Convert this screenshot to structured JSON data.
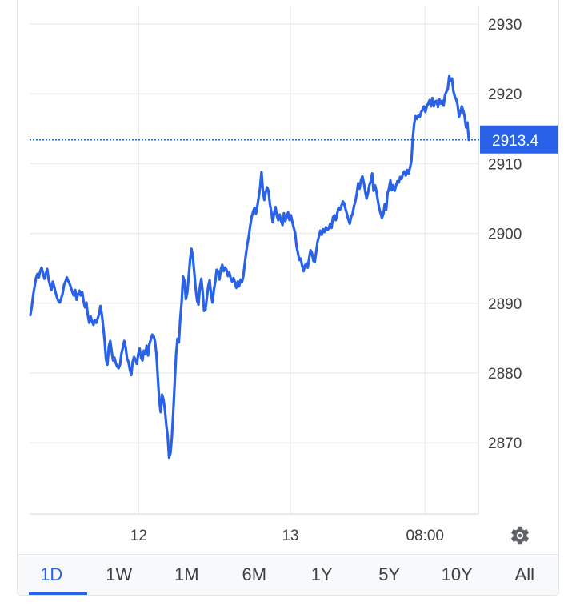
{
  "chart_data": {
    "type": "line",
    "title": "",
    "xlabel": "",
    "ylabel": "",
    "x_tick_labels": [
      "12",
      "13",
      "08:00"
    ],
    "y_ticks": [
      2870,
      2880,
      2890,
      2900,
      2910,
      2920,
      2930
    ],
    "y_tick_labels": [
      "2870",
      "2880",
      "2890",
      "2900",
      "2910",
      "2920",
      "2930"
    ],
    "ylim": [
      2860,
      2933
    ],
    "current_value": 2913.4,
    "current_label": "2913.4",
    "series": [
      {
        "values": [
          2888.3,
          2889.5,
          2891.2,
          2892.4,
          2893.6,
          2894.2,
          2893.7,
          2894.6,
          2895.1,
          2894.3,
          2893.5,
          2894.2,
          2894.9,
          2893.4,
          2892.6,
          2891.9,
          2893.1,
          2892.4,
          2891.5,
          2890.8,
          2890.3,
          2890.1,
          2890.7,
          2891.4,
          2892.6,
          2893.1,
          2893.7,
          2893.2,
          2892.8,
          2892.2,
          2891.6,
          2891.1,
          2891.9,
          2890.5,
          2891.3,
          2891.8,
          2891.1,
          2891.6,
          2890.2,
          2889.4,
          2890.1,
          2888.3,
          2887.2,
          2888.1,
          2887.4,
          2886.9,
          2887.6,
          2887.2,
          2887.8,
          2888.4,
          2889.6,
          2888.4,
          2886.6,
          2884.6,
          2881.9,
          2881.2,
          2883.8,
          2884.6,
          2883.1,
          2881.8,
          2882.2,
          2881.4,
          2880.9,
          2880.7,
          2881.2,
          2882.8,
          2883.6,
          2884.6,
          2883.7,
          2882.1,
          2881.6,
          2880.5,
          2879.7,
          2881.6,
          2882.3,
          2881.9,
          2881.3,
          2882.7,
          2883.5,
          2882.2,
          2881.8,
          2883.2,
          2882.7,
          2883.9,
          2882.5,
          2884.2,
          2884.8,
          2885.5,
          2885.3,
          2884.5,
          2882.6,
          2879.3,
          2876.1,
          2874.4,
          2876.9,
          2876.2,
          2874.8,
          2872.6,
          2871.0,
          2867.9,
          2868.5,
          2870.8,
          2874.4,
          2878.5,
          2882.6,
          2884.9,
          2884.4,
          2887.8,
          2890.2,
          2893.8,
          2893.2,
          2890.6,
          2891.5,
          2893.8,
          2896.2,
          2897.8,
          2896.6,
          2894.4,
          2892.1,
          2890.4,
          2889.8,
          2892.3,
          2893.5,
          2891.6,
          2888.9,
          2889.1,
          2890.8,
          2892.5,
          2893.3,
          2891.2,
          2890.1,
          2891.9,
          2893.1,
          2894.8,
          2894.6,
          2893.4,
          2894.9,
          2895.5,
          2894.6,
          2895.1,
          2894.8,
          2893.9,
          2894.4,
          2893.6,
          2893.1,
          2893.6,
          2893.0,
          2892.2,
          2893.1,
          2892.4,
          2893.4,
          2893.0,
          2893.8,
          2895.6,
          2897.2,
          2898.6,
          2899.7,
          2901.2,
          2902.4,
          2903.1,
          2903.7,
          2902.8,
          2903.9,
          2905.2,
          2906.6,
          2908.8,
          2906.2,
          2904.8,
          2905.9,
          2906.6,
          2906.1,
          2904.2,
          2903.1,
          2901.6,
          2902.9,
          2903.8,
          2902.5,
          2901.9,
          2902.7,
          2901.8,
          2901.2,
          2902.9,
          2901.8,
          2902.4,
          2903.0,
          2901.9,
          2902.6,
          2901.7,
          2900.8,
          2900.1,
          2898.2,
          2897.2,
          2896.2,
          2896.4,
          2895.4,
          2894.6,
          2895.4,
          2895.7,
          2895.1,
          2896.4,
          2897.6,
          2897.2,
          2896.1,
          2895.9,
          2897.3,
          2898.8,
          2899.6,
          2900.4,
          2899.8,
          2900.6,
          2900.2,
          2900.9,
          2900.5,
          2900.7,
          2901.4,
          2900.8,
          2902.3,
          2902.6,
          2901.9,
          2902.8,
          2903.7,
          2903.4,
          2903.9,
          2904.6,
          2904.3,
          2903.5,
          2902.8,
          2902.0,
          2901.4,
          2902.4,
          2902.8,
          2903.9,
          2904.6,
          2905.7,
          2907.2,
          2906.4,
          2907.6,
          2908.2,
          2907.3,
          2906.1,
          2905.0,
          2905.8,
          2906.9,
          2907.5,
          2908.6,
          2906.1,
          2906.9,
          2906.1,
          2904.8,
          2903.6,
          2902.9,
          2902.2,
          2902.8,
          2904.2,
          2903.4,
          2905.8,
          2906.4,
          2907.6,
          2906.2,
          2906.9,
          2906.1,
          2906.8,
          2907.5,
          2907.3,
          2908.1,
          2907.8,
          2908.6,
          2908.9,
          2908.3,
          2909.1,
          2908.6,
          2909.4,
          2910.4,
          2913.6,
          2915.7,
          2916.8,
          2916.4,
          2916.9,
          2916.7,
          2917.4,
          2917.7,
          2918.2,
          2917.4,
          2918.2,
          2918.6,
          2919.1,
          2918.2,
          2919.4,
          2918.2,
          2918.9,
          2919.0,
          2918.1,
          2919.2,
          2918.6,
          2919.0,
          2918.3,
          2919.8,
          2920.3,
          2920.7,
          2922.5,
          2921.8,
          2922.2,
          2920.4,
          2919.6,
          2919.2,
          2918.4,
          2916.7,
          2917.4,
          2918.2,
          2917.6,
          2916.8,
          2915.2,
          2915.9,
          2913.4
        ]
      }
    ],
    "x_tick_positions": [
      0.243,
      0.581,
      0.881
    ],
    "grid": true,
    "legend": "none"
  },
  "range_tabs": [
    "1D",
    "1W",
    "1M",
    "6M",
    "1Y",
    "5Y",
    "10Y",
    "All"
  ],
  "active_range": "1D",
  "icons": {
    "settings": "gear-icon"
  },
  "colors": {
    "accent": "#2962e8",
    "grid": "#e8eaed",
    "text": "#3c4043"
  }
}
